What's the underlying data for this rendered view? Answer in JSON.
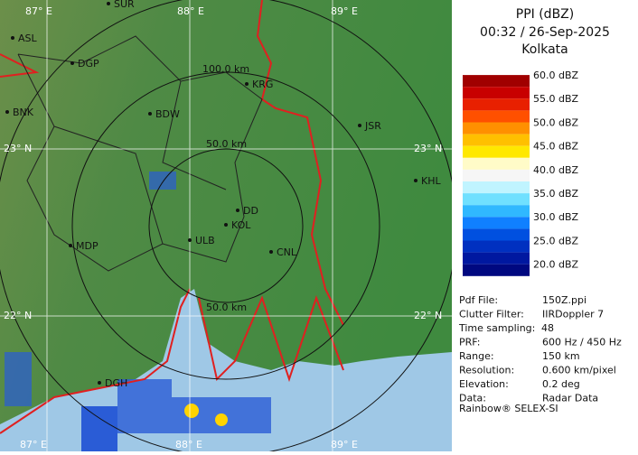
{
  "header": {
    "title": "PPI (dBZ)",
    "time": "00:32 / 26-Sep-2025",
    "station": "Kolkata"
  },
  "legend": [
    "60.0 dBZ",
    "55.0 dBZ",
    "50.0 dBZ",
    "45.0 dBZ",
    "40.0 dBZ",
    "35.0 dBZ",
    "30.0 dBZ",
    "25.0 dBZ",
    "20.0 dBZ"
  ],
  "info": [
    [
      "Pdf File:",
      "150Z.ppi"
    ],
    [
      "Clutter Filter:",
      "IIRDoppler 7"
    ],
    [
      "Time sampling:",
      "48"
    ],
    [
      "PRF:",
      "600 Hz / 450 Hz"
    ],
    [
      "Range:",
      "150 km"
    ],
    [
      "Resolution:",
      "0.600 km/pixel"
    ],
    [
      "Elevation:",
      "0.2 deg"
    ],
    [
      "Data:",
      "Radar Data"
    ]
  ],
  "footer": "Rainbow® SELEX-SI",
  "grid_labels": [
    "87° E",
    "88° E",
    "89° E",
    "87° E",
    "88° E",
    "89° E",
    "23° N",
    "23° N",
    "22° N",
    "22° N"
  ],
  "ring_labels": [
    "100.0 km",
    "50.0 km",
    "50.0 km"
  ],
  "places": [
    "SUR",
    "ASL",
    "DGP",
    "BNK",
    "BDW",
    "KRG",
    "JSR",
    "KHL",
    "MDP",
    "DD",
    "KOL",
    "ULB",
    "CNL",
    "DGH"
  ]
}
